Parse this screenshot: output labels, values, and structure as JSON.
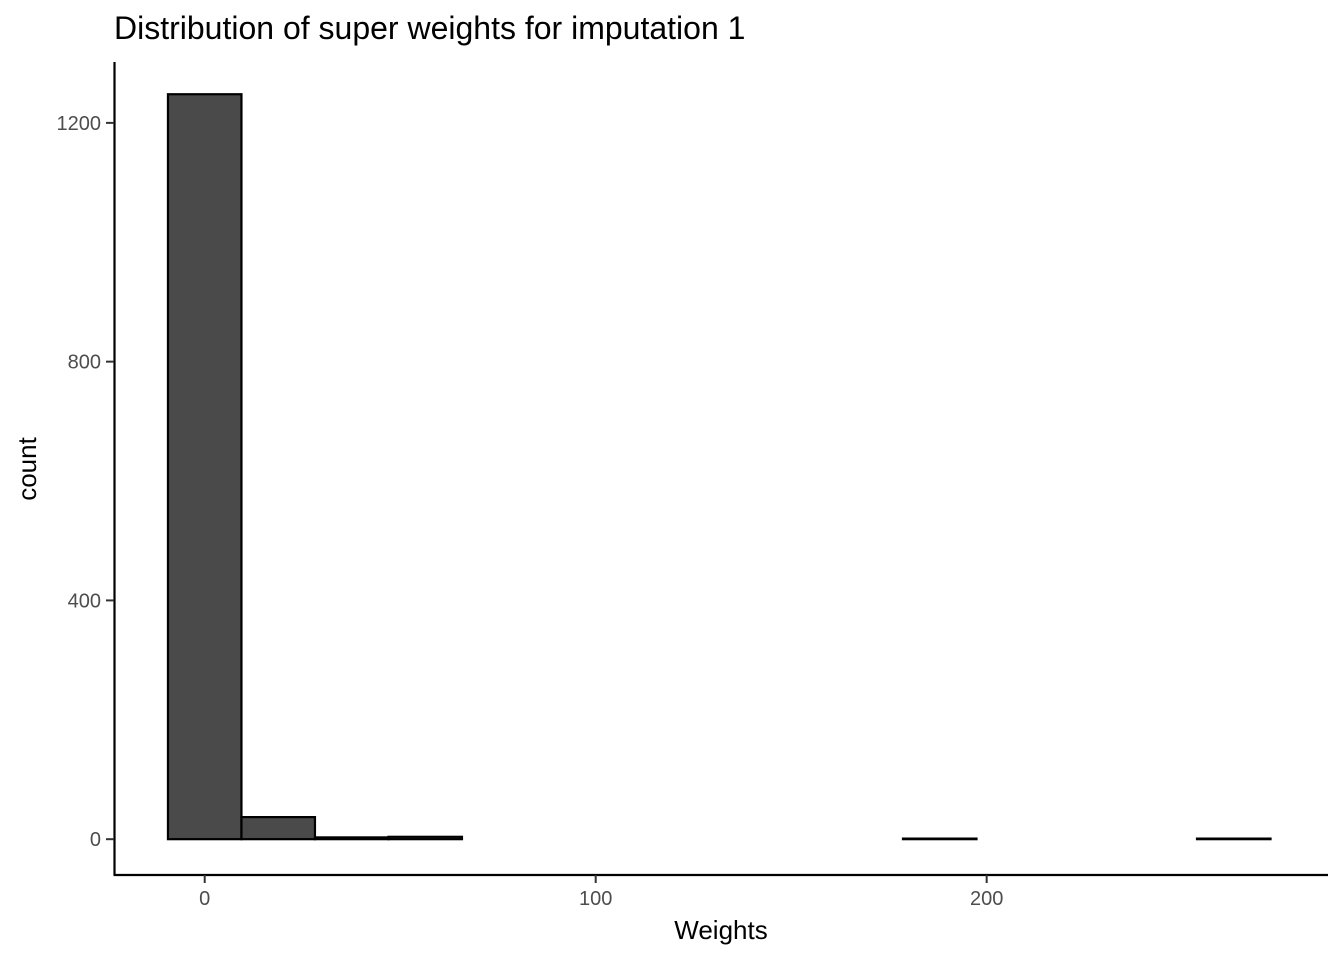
{
  "chart_data": {
    "type": "bar",
    "title": "Distribution of super weights for imputation 1",
    "xlabel": "Weights",
    "ylabel": "count",
    "xlim": [
      -23.2,
      287.3
    ],
    "ylim": [
      -60,
      1302
    ],
    "grid": false,
    "bar_fill": "#4a4a4a",
    "bar_stroke": "#000000",
    "x_ticks": [
      {
        "value": 0,
        "label": "0"
      },
      {
        "value": 100,
        "label": "100"
      },
      {
        "value": 200,
        "label": "200"
      }
    ],
    "y_ticks": [
      {
        "value": 0,
        "label": "0"
      },
      {
        "value": 400,
        "label": "400"
      },
      {
        "value": 800,
        "label": "800"
      },
      {
        "value": 1200,
        "label": "1200"
      }
    ],
    "bins": [
      {
        "x0": -9.4,
        "x1": 9.4,
        "count": 1248
      },
      {
        "x0": 9.4,
        "x1": 28.2,
        "count": 37
      },
      {
        "x0": 28.2,
        "x1": 47.0,
        "count": 3
      },
      {
        "x0": 47.0,
        "x1": 65.8,
        "count": 4
      },
      {
        "x0": 65.8,
        "x1": 84.6,
        "count": 0
      },
      {
        "x0": 84.6,
        "x1": 103.4,
        "count": 0
      },
      {
        "x0": 103.4,
        "x1": 122.2,
        "count": 0
      },
      {
        "x0": 122.2,
        "x1": 141.0,
        "count": 0
      },
      {
        "x0": 141.0,
        "x1": 159.8,
        "count": 0
      },
      {
        "x0": 159.8,
        "x1": 178.6,
        "count": 0
      },
      {
        "x0": 178.6,
        "x1": 197.4,
        "count": 1
      },
      {
        "x0": 197.4,
        "x1": 216.2,
        "count": 0
      },
      {
        "x0": 216.2,
        "x1": 235.0,
        "count": 0
      },
      {
        "x0": 235.0,
        "x1": 253.8,
        "count": 0
      },
      {
        "x0": 253.8,
        "x1": 272.6,
        "count": 1
      }
    ]
  }
}
